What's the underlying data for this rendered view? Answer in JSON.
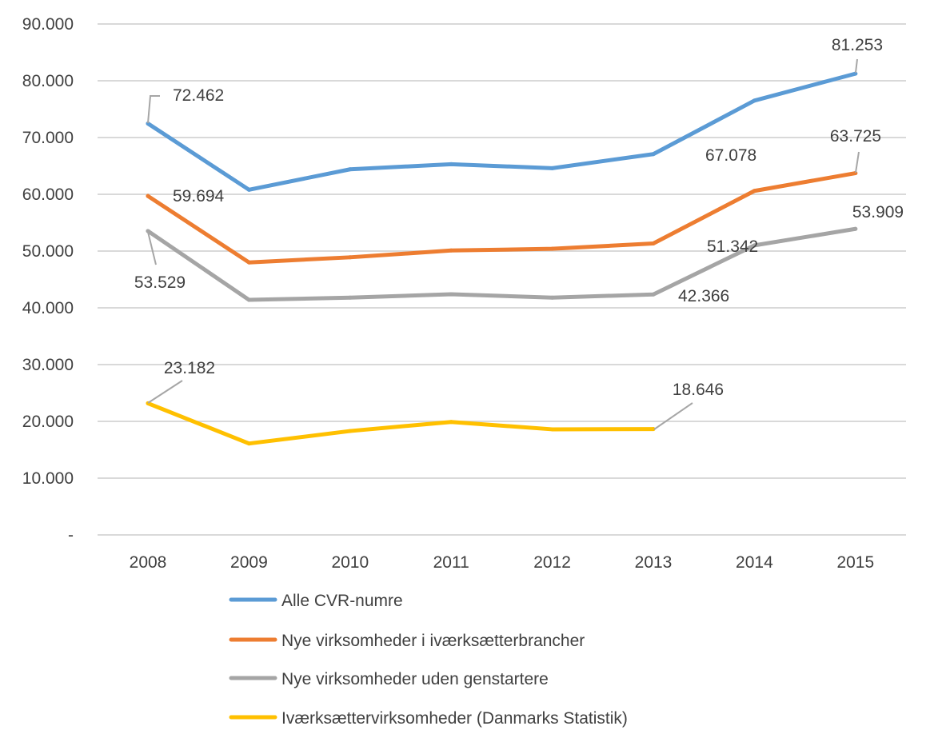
{
  "chart_data": {
    "type": "line",
    "title": "",
    "xlabel": "",
    "ylabel": "",
    "categories": [
      "2008",
      "2009",
      "2010",
      "2011",
      "2012",
      "2013",
      "2014",
      "2015"
    ],
    "ylim": [
      0,
      90000
    ],
    "yticks": [
      0,
      10000,
      20000,
      30000,
      40000,
      50000,
      60000,
      70000,
      80000,
      90000
    ],
    "ytick_labels": [
      "-",
      "10.000",
      "20.000",
      "30.000",
      "40.000",
      "50.000",
      "60.000",
      "70.000",
      "80.000",
      "90.000"
    ],
    "grid": true,
    "legend_position": "bottom",
    "series": [
      {
        "name": "Alle CVR-numre",
        "color": "#5B9BD5",
        "values": [
          72462,
          60800,
          64400,
          65300,
          64600,
          67078,
          76500,
          81253
        ],
        "labels": {
          "0": "72.462",
          "5": "67.078",
          "7": "81.253"
        }
      },
      {
        "name": "Nye virksomheder i iværksætterbrancher",
        "color": "#ED7D31",
        "values": [
          59694,
          48000,
          48900,
          50100,
          50400,
          51342,
          60600,
          63725
        ],
        "labels": {
          "0": "59.694",
          "5": "51.342",
          "7": "63.725"
        }
      },
      {
        "name": "Nye virksomheder uden genstartere",
        "color": "#A5A5A5",
        "values": [
          53529,
          41400,
          41800,
          42400,
          41800,
          42366,
          51000,
          53909
        ],
        "labels": {
          "0": "53.529",
          "5": "42.366",
          "7": "53.909"
        }
      },
      {
        "name": "Iværksættervirksomheder (Danmarks Statistik)",
        "color": "#FFC000",
        "values": [
          23182,
          16100,
          18300,
          19900,
          18600,
          18646,
          null,
          null
        ],
        "labels": {
          "0": "23.182",
          "5": "18.646"
        }
      }
    ]
  }
}
